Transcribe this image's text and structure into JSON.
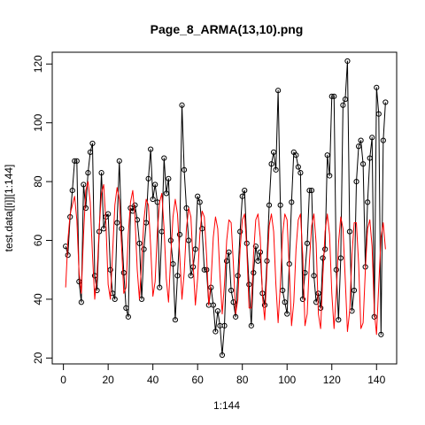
{
  "chart_data": {
    "type": "line",
    "title": "Page_8_ARMA(13,10).png",
    "xlabel": "1:144",
    "ylabel": "test.data[[i]][1:144]",
    "xlim": [
      -5,
      149
    ],
    "ylim": [
      18,
      124
    ],
    "x_ticks": [
      0,
      20,
      40,
      60,
      80,
      100,
      120,
      140
    ],
    "y_ticks": [
      20,
      40,
      60,
      80,
      100,
      120
    ],
    "grid": false,
    "legend": "none",
    "series": [
      {
        "style": "line-with-open-circles",
        "color": "#000000",
        "x": [
          1,
          2,
          3,
          4,
          5,
          6,
          7,
          8,
          9,
          10,
          11,
          12,
          13,
          14,
          15,
          16,
          17,
          18,
          19,
          20,
          21,
          22,
          23,
          24,
          25,
          26,
          27,
          28,
          29,
          30,
          31,
          32,
          33,
          34,
          35,
          36,
          37,
          38,
          39,
          40,
          41,
          42,
          43,
          44,
          45,
          46,
          47,
          48,
          49,
          50,
          51,
          52,
          53,
          54,
          55,
          56,
          57,
          58,
          59,
          60,
          61,
          62,
          63,
          64,
          65,
          66,
          67,
          68,
          69,
          70,
          71,
          72,
          73,
          74,
          75,
          76,
          77,
          78,
          79,
          80,
          81,
          82,
          83,
          84,
          85,
          86,
          87,
          88,
          89,
          90,
          91,
          92,
          93,
          94,
          95,
          96,
          97,
          98,
          99,
          100,
          101,
          102,
          103,
          104,
          105,
          106,
          107,
          108,
          109,
          110,
          111,
          112,
          113,
          114,
          115,
          116,
          117,
          118,
          119,
          120,
          121,
          122,
          123,
          124,
          125,
          126,
          127,
          128,
          129,
          130,
          131,
          132,
          133,
          134,
          135,
          136,
          137,
          138,
          139,
          140,
          141,
          142,
          143,
          144
        ],
        "values": [
          58,
          55,
          68,
          77,
          87,
          87,
          46,
          39,
          79,
          71,
          83,
          90,
          93,
          48,
          43,
          63,
          83,
          64,
          68,
          69,
          50,
          42,
          40,
          66,
          87,
          64,
          49,
          37,
          34,
          71,
          70,
          72,
          67,
          59,
          40,
          57,
          66,
          81,
          91,
          74,
          79,
          73,
          44,
          63,
          88,
          76,
          81,
          60,
          52,
          33,
          48,
          62,
          106,
          84,
          71,
          60,
          48,
          51,
          57,
          75,
          73,
          64,
          50,
          50,
          38,
          44,
          38,
          29,
          36,
          31,
          21,
          31,
          53,
          56,
          43,
          39,
          34,
          48,
          63,
          75,
          77,
          59,
          45,
          31,
          49,
          58,
          53,
          56,
          42,
          38,
          53,
          72,
          86,
          90,
          84,
          111,
          72,
          43,
          39,
          35,
          52,
          73,
          90,
          89,
          85,
          83,
          40,
          49,
          59,
          77,
          77,
          48,
          39,
          42,
          37,
          54,
          57,
          89,
          82,
          109,
          109,
          50,
          33,
          54,
          106,
          108,
          121,
          63,
          36,
          43,
          80,
          92,
          94,
          86,
          51,
          73,
          88,
          95,
          34,
          112,
          103,
          28,
          94,
          107
        ]
      },
      {
        "style": "line",
        "color": "#ff0000",
        "x": [
          1,
          2,
          3,
          4,
          5,
          6,
          7,
          8,
          9,
          10,
          11,
          12,
          13,
          14,
          15,
          16,
          17,
          18,
          19,
          20,
          21,
          22,
          23,
          24,
          25,
          26,
          27,
          28,
          29,
          30,
          31,
          32,
          33,
          34,
          35,
          36,
          37,
          38,
          39,
          40,
          41,
          42,
          43,
          44,
          45,
          46,
          47,
          48,
          49,
          50,
          51,
          52,
          53,
          54,
          55,
          56,
          57,
          58,
          59,
          60,
          61,
          62,
          63,
          64,
          65,
          66,
          67,
          68,
          69,
          70,
          71,
          72,
          73,
          74,
          75,
          76,
          77,
          78,
          79,
          80,
          81,
          82,
          83,
          84,
          85,
          86,
          87,
          88,
          89,
          90,
          91,
          92,
          93,
          94,
          95,
          96,
          97,
          98,
          99,
          100,
          101,
          102,
          103,
          104,
          105,
          106,
          107,
          108,
          109,
          110,
          111,
          112,
          113,
          114,
          115,
          116,
          117,
          118,
          119,
          120,
          121,
          122,
          123,
          124,
          125,
          126,
          127,
          128,
          129,
          130,
          131,
          132,
          133,
          134,
          135,
          136,
          137,
          138,
          139,
          140,
          141,
          142,
          143,
          144
        ],
        "values": [
          44,
          60,
          69,
          72,
          75,
          67,
          49,
          42,
          62,
          77,
          80,
          73,
          55,
          40,
          48,
          64,
          76,
          79,
          66,
          45,
          40,
          56,
          72,
          78,
          74,
          58,
          42,
          44,
          62,
          73,
          77,
          68,
          50,
          40,
          53,
          67,
          74,
          72,
          58,
          41,
          46,
          63,
          73,
          76,
          64,
          47,
          39,
          55,
          68,
          74,
          69,
          55,
          40,
          49,
          64,
          71,
          68,
          52,
          38,
          47,
          62,
          70,
          68,
          55,
          38,
          46,
          61,
          68,
          64,
          48,
          35,
          45,
          60,
          67,
          66,
          52,
          35,
          40,
          57,
          67,
          69,
          57,
          37,
          37,
          55,
          67,
          69,
          61,
          41,
          33,
          50,
          65,
          69,
          63,
          45,
          32,
          45,
          62,
          69,
          67,
          50,
          31,
          39,
          57,
          67,
          69,
          55,
          31,
          35,
          53,
          65,
          69,
          59,
          35,
          30,
          48,
          63,
          69,
          62,
          42,
          30,
          42,
          59,
          68,
          64,
          47,
          29,
          36,
          55,
          66,
          66,
          52,
          30,
          32,
          50,
          64,
          67,
          58,
          36,
          28,
          45,
          61,
          66,
          57
        ]
      }
    ]
  }
}
